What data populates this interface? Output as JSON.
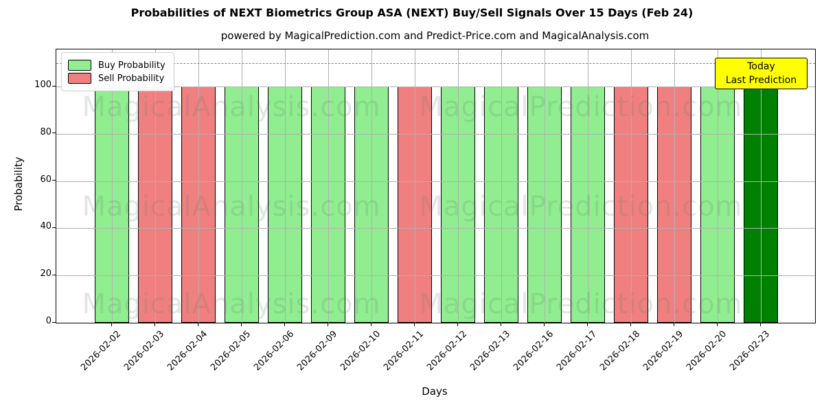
{
  "title": "Probabilities of NEXT Biometrics Group ASA (NEXT) Buy/Sell Signals Over 15 Days (Feb 24)",
  "subtitle": "powered by MagicalPrediction.com and Predict-Price.com and MagicalAnalysis.com",
  "legend": {
    "items": [
      {
        "label": "Buy Probability",
        "color": "#90EE90"
      },
      {
        "label": "Sell Probability",
        "color": "#F08080"
      }
    ]
  },
  "annotation": {
    "line1": "Today",
    "line2": "Last Prediction",
    "bg_color": "#FFFF00"
  },
  "watermarks": [
    "MagicalAnalysis.com",
    "MagicalPrediction.com"
  ],
  "chart_data": {
    "type": "bar",
    "title": "Probabilities of NEXT Biometrics Group ASA (NEXT) Buy/Sell Signals Over 15 Days (Feb 24)",
    "xlabel": "Days",
    "ylabel": "Probability",
    "ylim": [
      0,
      115.7
    ],
    "yticks": [
      0,
      20,
      40,
      60,
      80,
      100
    ],
    "grid": true,
    "legend_position": "upper left",
    "dashed_threshold_y": 110,
    "categories": [
      "2026-02-02",
      "2026-02-03",
      "2026-02-04",
      "2026-02-05",
      "2026-02-06",
      "2026-02-09",
      "2026-02-10",
      "2026-02-11",
      "2026-02-12",
      "2026-02-13",
      "2026-02-16",
      "2026-02-17",
      "2026-02-18",
      "2026-02-19",
      "2026-02-20",
      "2026-02-23"
    ],
    "values": [
      100,
      100,
      100,
      100,
      100,
      100,
      100,
      100,
      100,
      100,
      100,
      100,
      100,
      100,
      100,
      100
    ],
    "signals": [
      "buy",
      "sell",
      "sell",
      "buy",
      "buy",
      "buy",
      "buy",
      "sell",
      "buy",
      "buy",
      "buy",
      "buy",
      "sell",
      "sell",
      "buy",
      "today"
    ],
    "colors": {
      "buy": "#90EE90",
      "sell": "#F08080",
      "today": "#008000",
      "edge": "#000000"
    }
  }
}
